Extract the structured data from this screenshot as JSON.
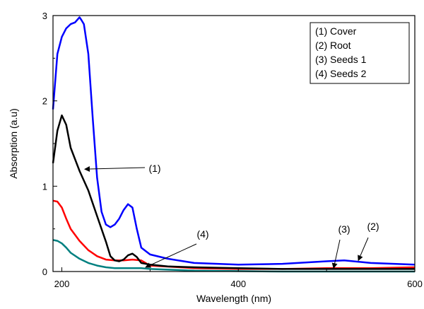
{
  "chart_data": {
    "type": "line",
    "title": "",
    "xlabel": "Wavelength (nm)",
    "ylabel": "Absorption (a.u)",
    "xlim": [
      190,
      600
    ],
    "ylim": [
      0,
      3
    ],
    "xticks": [
      200,
      400,
      600
    ],
    "yticks": [
      0,
      1,
      2,
      3
    ],
    "grid": false,
    "legend_position": "top-right",
    "legend": [
      "(1) Cover",
      "(2) Root",
      "(3) Seeds 1",
      "(4) Seeds 2"
    ],
    "series": [
      {
        "name": "(1) Cover",
        "color": "#000000",
        "x": [
          190,
          195,
          200,
          205,
          210,
          220,
          230,
          240,
          250,
          255,
          260,
          265,
          270,
          275,
          280,
          285,
          290,
          300,
          320,
          350,
          400,
          450,
          500,
          550,
          600
        ],
        "y": [
          1.27,
          1.65,
          1.83,
          1.72,
          1.45,
          1.18,
          0.95,
          0.65,
          0.35,
          0.18,
          0.13,
          0.12,
          0.14,
          0.19,
          0.21,
          0.17,
          0.1,
          0.08,
          0.06,
          0.05,
          0.04,
          0.03,
          0.03,
          0.03,
          0.03
        ]
      },
      {
        "name": "(2) Root",
        "color": "#0000ff",
        "x": [
          190,
          195,
          200,
          205,
          210,
          215,
          220,
          222,
          225,
          230,
          235,
          240,
          245,
          250,
          255,
          260,
          265,
          270,
          275,
          280,
          285,
          290,
          300,
          320,
          350,
          400,
          450,
          500,
          520,
          550,
          600
        ],
        "y": [
          1.9,
          2.55,
          2.75,
          2.85,
          2.9,
          2.92,
          2.98,
          2.95,
          2.9,
          2.55,
          1.8,
          1.1,
          0.7,
          0.55,
          0.52,
          0.55,
          0.62,
          0.72,
          0.79,
          0.75,
          0.5,
          0.28,
          0.2,
          0.15,
          0.1,
          0.08,
          0.09,
          0.12,
          0.13,
          0.1,
          0.08
        ]
      },
      {
        "name": "(3) Seeds 1",
        "color": "#ff0000",
        "x": [
          190,
          195,
          200,
          205,
          210,
          220,
          230,
          240,
          250,
          260,
          270,
          280,
          290,
          300,
          350,
          400,
          450,
          500,
          550,
          600
        ],
        "y": [
          0.83,
          0.82,
          0.75,
          0.62,
          0.5,
          0.36,
          0.25,
          0.18,
          0.14,
          0.13,
          0.13,
          0.14,
          0.13,
          0.07,
          0.04,
          0.03,
          0.03,
          0.04,
          0.04,
          0.05
        ]
      },
      {
        "name": "(4) Seeds 2",
        "color": "#008080",
        "x": [
          190,
          195,
          200,
          205,
          210,
          220,
          230,
          240,
          250,
          260,
          270,
          280,
          290,
          300,
          350,
          400,
          450,
          500,
          550,
          600
        ],
        "y": [
          0.37,
          0.36,
          0.33,
          0.28,
          0.22,
          0.15,
          0.1,
          0.07,
          0.05,
          0.04,
          0.04,
          0.04,
          0.04,
          0.03,
          0.01,
          0.005,
          0.0,
          0.0,
          0.0,
          0.0
        ]
      }
    ],
    "annotations": [
      {
        "label": "(1)",
        "series": "(1) Cover",
        "target": [
          226,
          1.2
        ]
      },
      {
        "label": "(4)",
        "series": "(4) Seeds 2",
        "target": [
          295,
          0.05
        ]
      },
      {
        "label": "(3)",
        "series": "(3) Seeds 1",
        "target": [
          508,
          0.04
        ]
      },
      {
        "label": "(2)",
        "series": "(2) Root",
        "target": [
          536,
          0.13
        ]
      }
    ]
  }
}
